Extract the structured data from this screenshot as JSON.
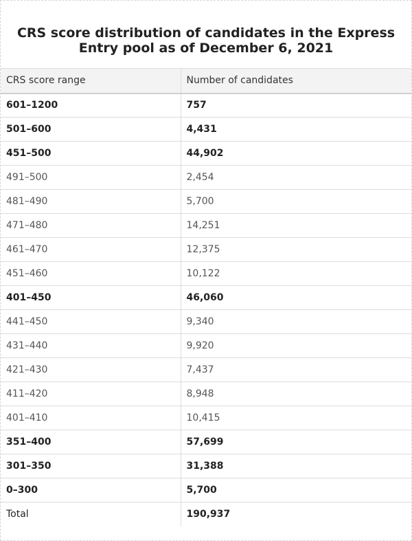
{
  "table": {
    "caption_line1": "CRS score distribution of candidates in the Express",
    "caption_line2": "Entry pool as of December 6, 2021",
    "headers": [
      "CRS score range",
      "Number of candidates"
    ],
    "rows": [
      {
        "range": "601–1200",
        "count": "757",
        "bold": true
      },
      {
        "range": "501–600",
        "count": "4,431",
        "bold": true
      },
      {
        "range": "451–500",
        "count": "44,902",
        "bold": true
      },
      {
        "range": "491–500",
        "count": "2,454",
        "bold": false
      },
      {
        "range": "481–490",
        "count": "5,700",
        "bold": false
      },
      {
        "range": "471–480",
        "count": "14,251",
        "bold": false
      },
      {
        "range": "461–470",
        "count": "12,375",
        "bold": false
      },
      {
        "range": "451–460",
        "count": "10,122",
        "bold": false
      },
      {
        "range": "401–450",
        "count": "46,060",
        "bold": true
      },
      {
        "range": "441–450",
        "count": "9,340",
        "bold": false
      },
      {
        "range": "431–440",
        "count": "9,920",
        "bold": false
      },
      {
        "range": "421–430",
        "count": "7,437",
        "bold": false
      },
      {
        "range": "411–420",
        "count": "8,948",
        "bold": false
      },
      {
        "range": "401–410",
        "count": "10,415",
        "bold": false
      },
      {
        "range": "351–400",
        "count": "57,699",
        "bold": true
      },
      {
        "range": "301–350",
        "count": "31,388",
        "bold": true
      },
      {
        "range": "0–300",
        "count": "5,700",
        "bold": true
      }
    ],
    "total": {
      "range": "Total",
      "count": "190,937"
    }
  }
}
